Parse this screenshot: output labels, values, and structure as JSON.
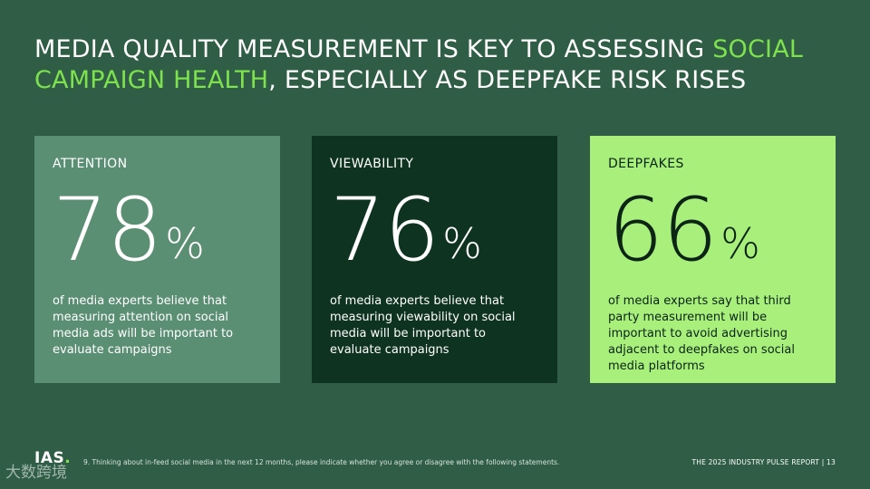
{
  "headline": {
    "part1": "MEDIA QUALITY MEASUREMENT IS KEY TO ASSESSING ",
    "highlight": "SOCIAL CAMPAIGN HEALTH",
    "part2": ", ESPECIALLY AS DEEPFAKE RISK RISES"
  },
  "cards": [
    {
      "label": "ATTENTION",
      "value": "78",
      "unit": "%",
      "description": "of media experts believe that measuring attention on social media ads will be important to evaluate campaigns"
    },
    {
      "label": "VIEWABILITY",
      "value": "76",
      "unit": "%",
      "description": "of media experts believe that measuring viewability on social media will be important to evaluate campaigns"
    },
    {
      "label": "DEEPFAKES",
      "value": "66",
      "unit": "%",
      "description": "of media experts say that third party measurement will be important to avoid advertising adjacent to deepfakes on social media platforms"
    }
  ],
  "footer": {
    "logo": "IAS",
    "footnote": "9. Thinking about in-feed social media in the next 12 months, please indicate whether you agree or disagree with the following statements.",
    "report": "THE 2025 INDUSTRY PULSE REPORT  |  13"
  },
  "watermark": "大数跨境",
  "colors": {
    "background": "#2f5d45",
    "accent": "#7ee24f",
    "card_attention": "#5a8f74",
    "card_viewability": "#0e3320",
    "card_deepfakes": "#a9ef7c"
  }
}
